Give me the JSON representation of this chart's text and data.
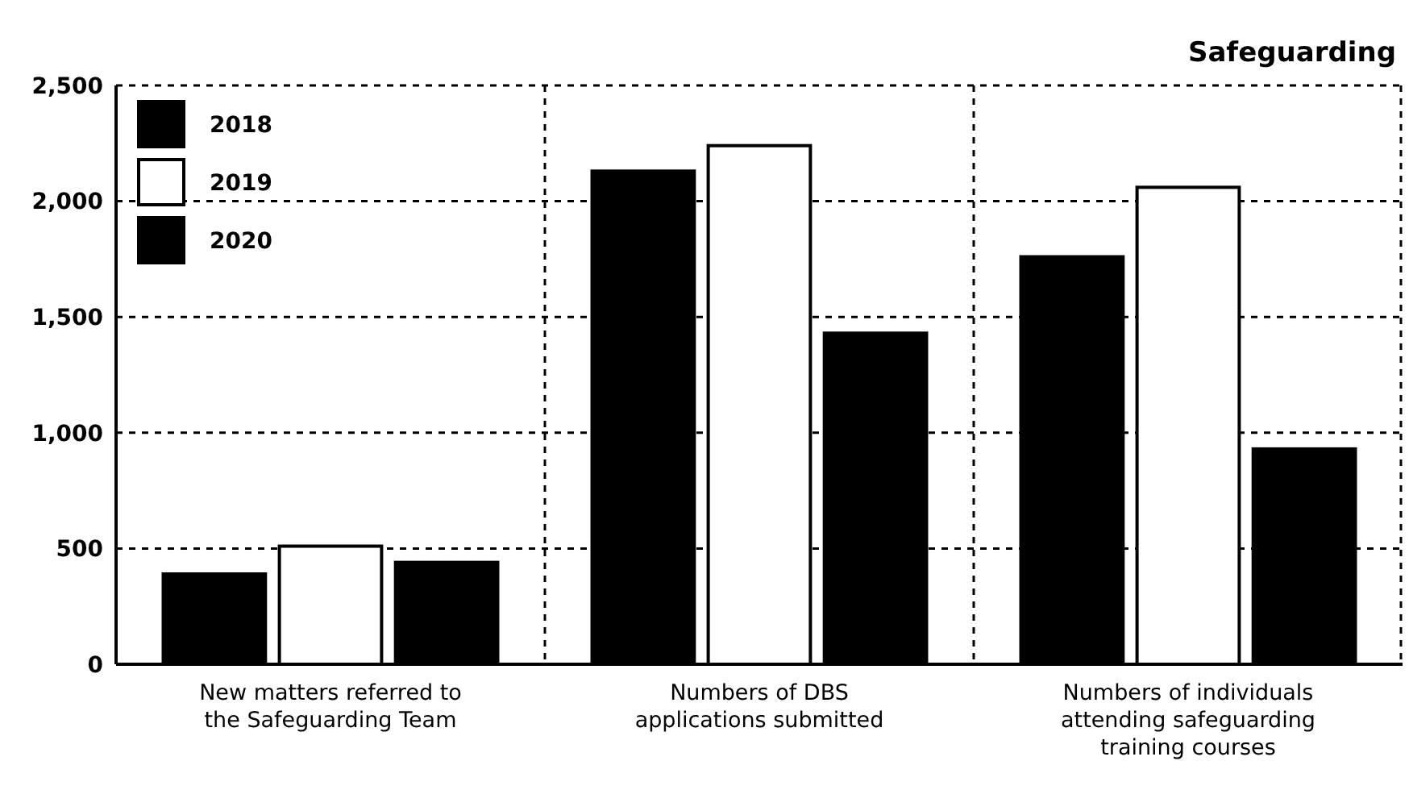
{
  "chart_data": {
    "type": "bar",
    "title": "Safeguarding",
    "categories": [
      "New matters referred to the Safeguarding Team",
      "Numbers of DBS applications submitted",
      "Numbers of individuals attending safeguarding training courses"
    ],
    "series": [
      {
        "name": "2018",
        "color": "#000000",
        "values": [
          390,
          2130,
          1760
        ]
      },
      {
        "name": "2019",
        "color": "#ffffff",
        "values": [
          510,
          2240,
          2060
        ]
      },
      {
        "name": "2020",
        "color": "#000000",
        "values": [
          440,
          1430,
          930
        ]
      }
    ],
    "ylim": [
      0,
      2500
    ],
    "yticks": [
      0,
      {
        "value": 500,
        "label": "500"
      },
      {
        "value": 1000,
        "label": "1,000"
      },
      {
        "value": 1500,
        "label": "1,500"
      },
      {
        "value": 2000,
        "label": "2,000"
      },
      {
        "value": 2500,
        "label": "2,500"
      }
    ],
    "grid": true,
    "legend": "top left"
  }
}
